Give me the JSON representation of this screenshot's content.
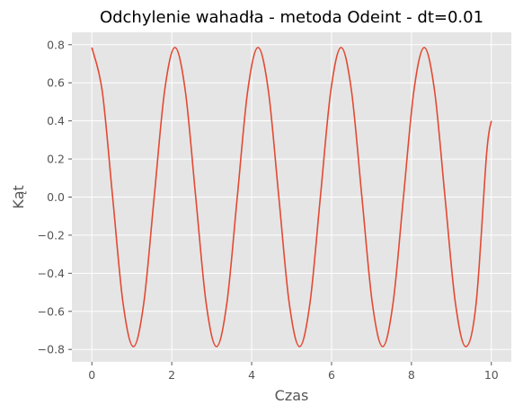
{
  "chart_data": {
    "type": "line",
    "title": "Odchylenie wahadła - metoda Odeint - dt=0.01",
    "xlabel": "Czas",
    "ylabel": "Kąt",
    "xlim": [
      -0.5,
      10.5
    ],
    "ylim": [
      -0.865,
      0.865
    ],
    "xticks": [
      0,
      2,
      4,
      6,
      8,
      10
    ],
    "xtick_labels": [
      "0",
      "2",
      "4",
      "6",
      "8",
      "10"
    ],
    "yticks": [
      0.8,
      0.6,
      0.4,
      0.2,
      0.0,
      -0.2,
      -0.4,
      -0.6,
      -0.8
    ],
    "ytick_labels": [
      "0.8",
      "0.6",
      "0.4",
      "0.2",
      "0.0",
      "−0.2",
      "−0.4",
      "−0.6",
      "−0.8"
    ],
    "grid": true,
    "series": [
      {
        "color": "#e24a33",
        "x": [
          0,
          0.26,
          0.52,
          0.78,
          1.04,
          1.3,
          1.56,
          1.82,
          2.08,
          2.34,
          2.6,
          2.86,
          3.12,
          3.38,
          3.64,
          3.9,
          4.16,
          4.42,
          4.68,
          4.94,
          5.2,
          5.46,
          5.72,
          5.98,
          6.24,
          6.5,
          6.76,
          7.02,
          7.28,
          7.54,
          7.8,
          8.06,
          8.32,
          8.58,
          8.84,
          9.1,
          9.36,
          9.62,
          9.88,
          10.0
        ],
        "y": [
          0.785,
          0.556,
          0.0,
          -0.556,
          -0.785,
          -0.556,
          0.0,
          0.556,
          0.785,
          0.556,
          0.0,
          -0.556,
          -0.785,
          -0.556,
          0.0,
          0.556,
          0.785,
          0.556,
          0.0,
          -0.556,
          -0.785,
          -0.556,
          0.0,
          0.556,
          0.785,
          0.556,
          0.0,
          -0.556,
          -0.785,
          -0.556,
          0.0,
          0.556,
          0.785,
          0.556,
          0.0,
          -0.556,
          -0.785,
          -0.556,
          0.224,
          0.4
        ]
      }
    ]
  }
}
